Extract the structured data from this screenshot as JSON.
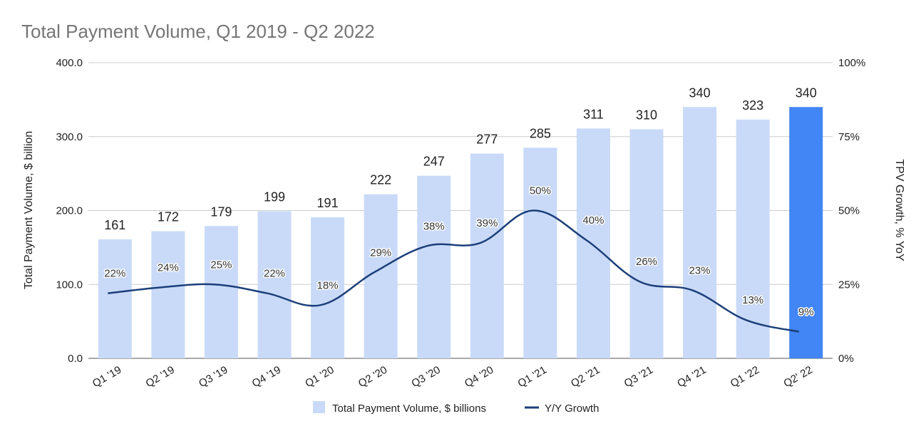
{
  "chart_data": {
    "type": "bar",
    "title": "Total Payment Volume,  Q1 2019 - Q2 2022",
    "categories": [
      "Q1 '19",
      "Q2 '19",
      "Q3 '19",
      "Q4 '19",
      "Q1 '20",
      "Q2 '20",
      "Q3 '20",
      "Q4 '20",
      "Q1 '21",
      "Q2 '21",
      "Q3 '21",
      "Q4 '21",
      "Q1 '22",
      "Q2' 22"
    ],
    "series": [
      {
        "name": "Total Payment Volume, $ billions",
        "type": "bar",
        "axis": "left",
        "values": [
          161,
          172,
          179,
          199,
          191,
          222,
          247,
          277,
          285,
          311,
          310,
          340,
          323,
          340
        ],
        "labels": [
          "161",
          "172",
          "179",
          "199",
          "191",
          "222",
          "247",
          "277",
          "285",
          "311",
          "310",
          "340",
          "323",
          "340"
        ],
        "color": "#c9daf8",
        "highlight_color": "#4285f4",
        "highlight_index": 13
      },
      {
        "name": "Y/Y Growth",
        "type": "line",
        "axis": "right",
        "values": [
          22,
          24,
          25,
          22,
          18,
          29,
          38,
          39,
          50,
          40,
          26,
          23,
          13,
          9
        ],
        "labels": [
          "22%",
          "24%",
          "25%",
          "22%",
          "18%",
          "29%",
          "38%",
          "39%",
          "50%",
          "40%",
          "26%",
          "23%",
          "13%",
          "9%"
        ],
        "color": "#1c3f7a"
      }
    ],
    "ylabel": "Total Payment Volume, $ billion",
    "y2label": "TPV Growth, % YoY",
    "ylim": [
      0,
      400
    ],
    "y2lim": [
      0,
      100
    ],
    "yticks": [
      0,
      100,
      200,
      300,
      400
    ],
    "ytick_labels": [
      "0.0",
      "100.0",
      "200.0",
      "300.0",
      "400.0"
    ],
    "y2ticks": [
      0,
      25,
      50,
      75,
      100
    ],
    "y2tick_labels": [
      "0%",
      "25%",
      "50%",
      "75%",
      "100%"
    ],
    "grid": true,
    "legend_position": "bottom"
  }
}
